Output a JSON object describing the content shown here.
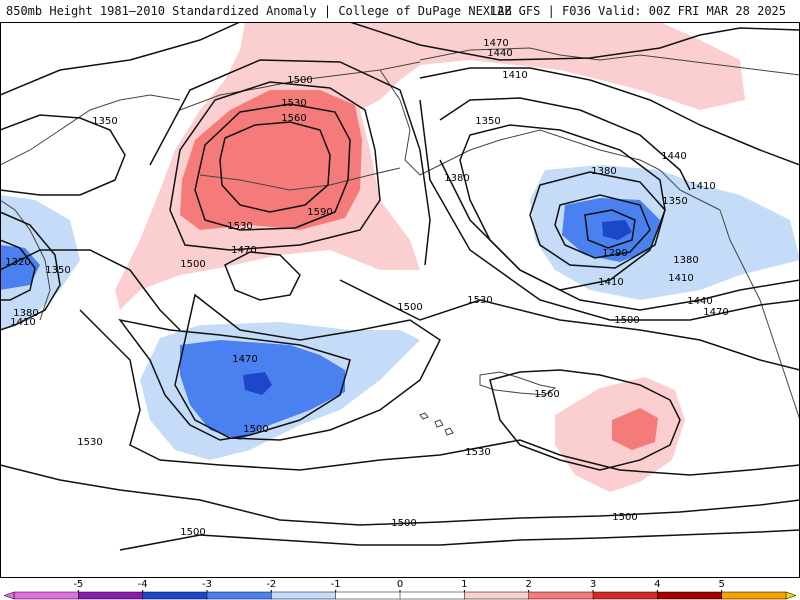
{
  "header": {
    "title_left": "850mb Height 1981–2010 Standardized Anomaly | College of DuPage NEXLAB",
    "title_right": "12Z GFS | F036 Valid: 00Z FRI MAR 28 2025"
  },
  "colors": {
    "neg5": "#e070e0",
    "neg4": "#8a1ab0",
    "neg3": "#1b47c8",
    "neg2": "#4a80f0",
    "neg1": "#c4dcf7",
    "zero": "#ffffff",
    "pos1": "#fbcfcf",
    "pos2": "#f57b7b",
    "pos3": "#d02a2a",
    "pos4": "#a30000",
    "pos5": "#f7a000",
    "pos6": "#f9d000",
    "contour": "#111111",
    "coast": "#444444"
  },
  "contour_labels": [
    {
      "id": "c1",
      "text": "1350"
    },
    {
      "id": "c2",
      "text": "1500"
    },
    {
      "id": "c3",
      "text": "1530"
    },
    {
      "id": "c4",
      "text": "1560"
    },
    {
      "id": "c5",
      "text": "1590"
    },
    {
      "id": "c6",
      "text": "1530"
    },
    {
      "id": "c7",
      "text": "1500"
    },
    {
      "id": "c8",
      "text": "1470"
    },
    {
      "id": "c9",
      "text": "1470"
    },
    {
      "id": "c10",
      "text": "1440"
    },
    {
      "id": "c11",
      "text": "1410"
    },
    {
      "id": "c12",
      "text": "1350"
    },
    {
      "id": "c13",
      "text": "1380"
    },
    {
      "id": "c14",
      "text": "1380"
    },
    {
      "id": "c15",
      "text": "1440"
    },
    {
      "id": "c16",
      "text": "1410"
    },
    {
      "id": "c17",
      "text": "1350"
    },
    {
      "id": "c18",
      "text": "1290"
    },
    {
      "id": "c19",
      "text": "1380"
    },
    {
      "id": "c20",
      "text": "1410"
    },
    {
      "id": "c21",
      "text": "1410"
    },
    {
      "id": "c22",
      "text": "1440"
    },
    {
      "id": "c23",
      "text": "1470"
    },
    {
      "id": "c24",
      "text": "1500"
    },
    {
      "id": "c25",
      "text": "1530"
    },
    {
      "id": "c26",
      "text": "1500"
    },
    {
      "id": "c27",
      "text": "1470"
    },
    {
      "id": "c28",
      "text": "1500"
    },
    {
      "id": "c29",
      "text": "1560"
    },
    {
      "id": "c30",
      "text": "1530"
    },
    {
      "id": "c31",
      "text": "1530"
    },
    {
      "id": "c32",
      "text": "1500"
    },
    {
      "id": "c33",
      "text": "1500"
    },
    {
      "id": "c34",
      "text": "1500"
    },
    {
      "id": "c35",
      "text": "1320"
    },
    {
      "id": "c36",
      "text": "1350"
    },
    {
      "id": "c37",
      "text": "1380"
    },
    {
      "id": "c38",
      "text": "1410"
    }
  ],
  "colorbar": {
    "ticks": [
      "-5",
      "-4",
      "-3",
      "-2",
      "-1",
      "0",
      "1",
      "2",
      "3",
      "4",
      "5"
    ]
  }
}
